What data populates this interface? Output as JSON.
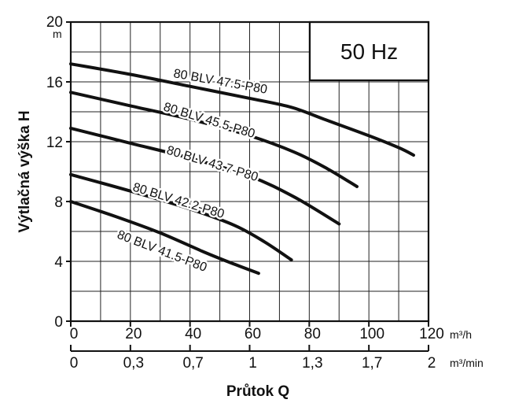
{
  "chart_data": {
    "type": "line",
    "frequency_label": "50 Hz",
    "xlabel": "Průtok Q",
    "ylabel": "Výtlačná výška H",
    "x_unit": "m³/h",
    "x2_unit": "m³/min",
    "y_unit": "m",
    "xlim": [
      0,
      120
    ],
    "ylim": [
      0,
      20
    ],
    "grid": true,
    "x_ticks": [
      "0",
      "20",
      "40",
      "60",
      "80",
      "100",
      "120"
    ],
    "x2_ticks": [
      "0",
      "0,3",
      "0,7",
      "1",
      "1,3",
      "1,7",
      "2"
    ],
    "y_ticks": [
      "0",
      "4",
      "8",
      "12",
      "16",
      "20"
    ],
    "series": [
      {
        "name": "80 BLV 47.5-P80",
        "x": [
          0,
          20,
          40,
          60,
          74,
          85,
          100,
          110,
          115
        ],
        "y": [
          17.2,
          16.5,
          15.7,
          14.9,
          14.3,
          13.5,
          12.4,
          11.6,
          11.1
        ]
      },
      {
        "name": "80 BLV 45.5-P80",
        "x": [
          0,
          20,
          40,
          60,
          75,
          86,
          96
        ],
        "y": [
          15.3,
          14.4,
          13.5,
          12.4,
          11.3,
          10.2,
          9.0
        ]
      },
      {
        "name": "80 BLV 43.7-P80",
        "x": [
          0,
          20,
          40,
          60,
          75,
          90
        ],
        "y": [
          12.9,
          11.9,
          10.9,
          9.7,
          8.3,
          6.5
        ]
      },
      {
        "name": "80 BLV 42.2-P80",
        "x": [
          0,
          20,
          40,
          55,
          65,
          74
        ],
        "y": [
          9.8,
          8.7,
          7.5,
          6.4,
          5.3,
          4.1
        ]
      },
      {
        "name": "80 BLV 41.5-P80",
        "x": [
          0,
          15,
          30,
          45,
          55,
          63
        ],
        "y": [
          8.0,
          7.0,
          5.9,
          4.6,
          3.8,
          3.2
        ]
      }
    ]
  }
}
